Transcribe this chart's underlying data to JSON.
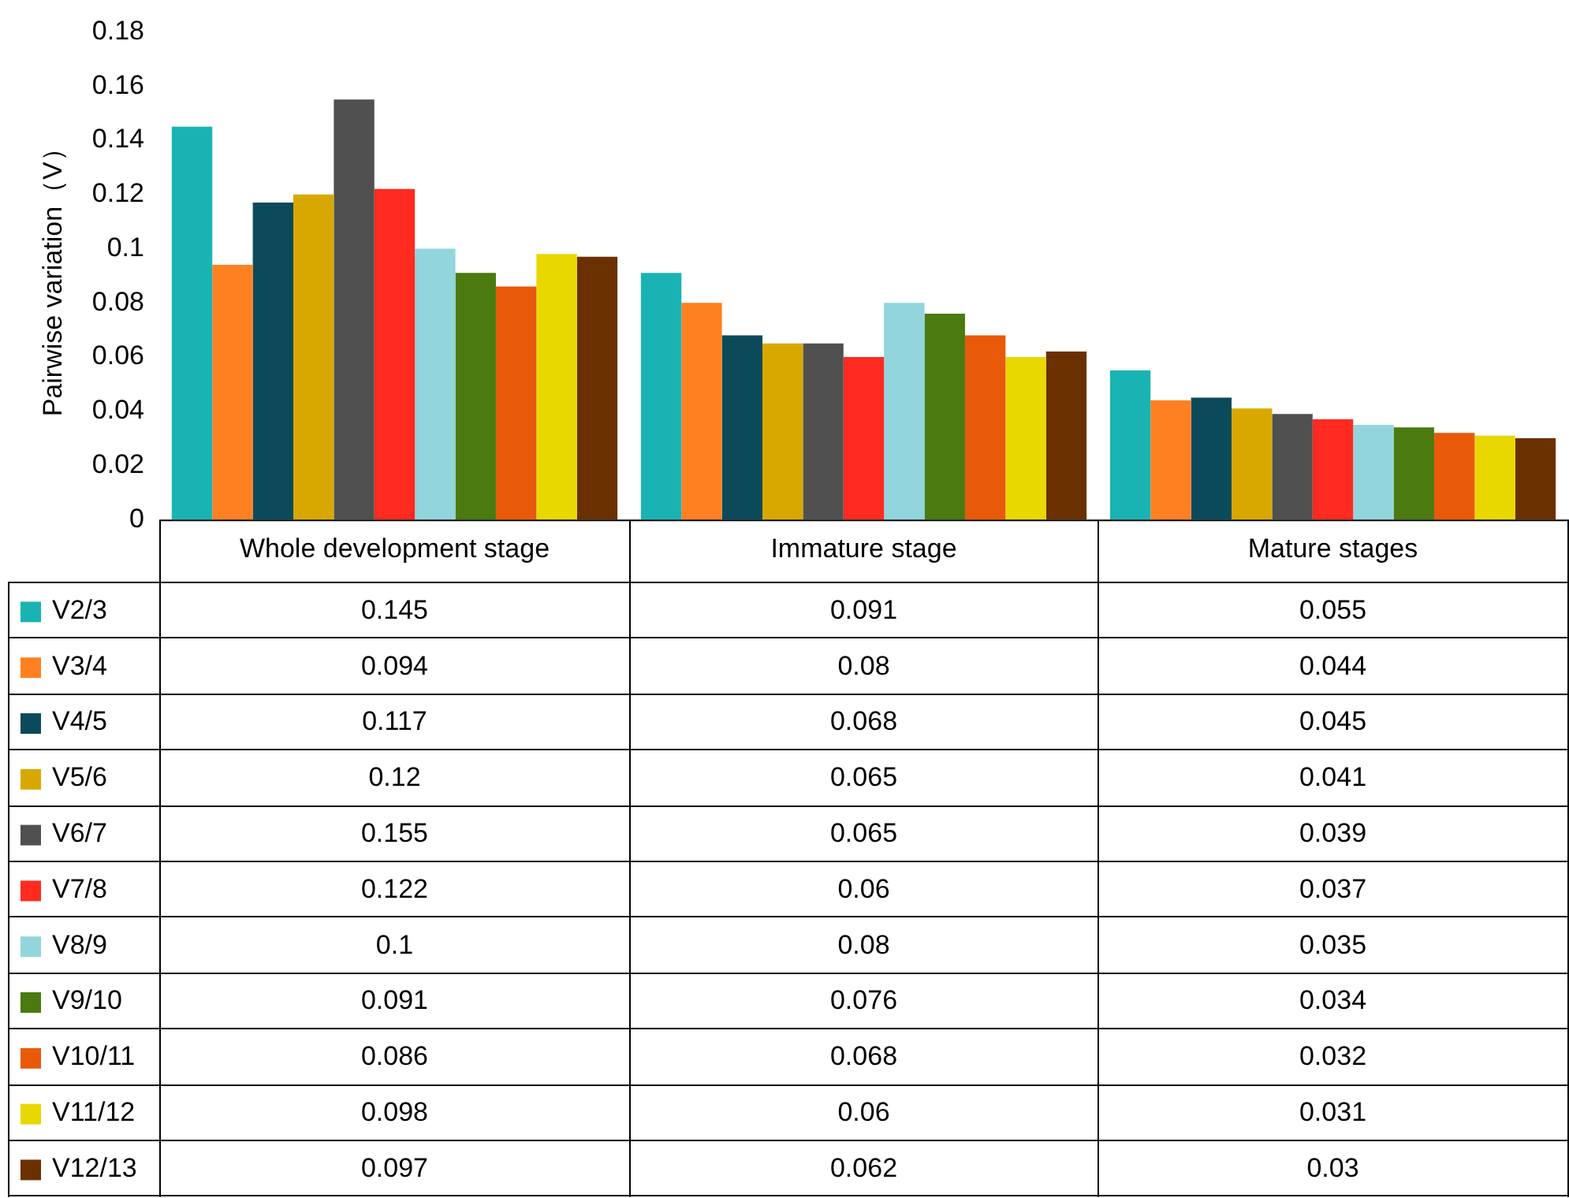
{
  "chart_data": {
    "type": "bar",
    "ylabel": "Pairwise variation（V）",
    "categories": [
      "Whole development stage",
      "Immature stage",
      "Mature stages"
    ],
    "series": [
      {
        "name": "V2/3",
        "color": "#1ab3b3",
        "values": [
          0.145,
          0.091,
          0.055
        ]
      },
      {
        "name": "V3/4",
        "color": "#ff8020",
        "values": [
          0.094,
          0.08,
          0.044
        ]
      },
      {
        "name": "V4/5",
        "color": "#0b4a5a",
        "values": [
          0.117,
          0.068,
          0.045
        ]
      },
      {
        "name": "V5/6",
        "color": "#d9a800",
        "values": [
          0.12,
          0.065,
          0.041
        ]
      },
      {
        "name": "V6/7",
        "color": "#505050",
        "values": [
          0.155,
          0.065,
          0.039
        ]
      },
      {
        "name": "V7/8",
        "color": "#ff2a20",
        "values": [
          0.122,
          0.06,
          0.037
        ]
      },
      {
        "name": "V8/9",
        "color": "#92d5dc",
        "values": [
          0.1,
          0.08,
          0.035
        ]
      },
      {
        "name": "V9/10",
        "color": "#4a7a10",
        "values": [
          0.091,
          0.076,
          0.034
        ]
      },
      {
        "name": "V10/11",
        "color": "#e85a0a",
        "values": [
          0.086,
          0.068,
          0.032
        ]
      },
      {
        "name": "V11/12",
        "color": "#e8d800",
        "values": [
          0.098,
          0.06,
          0.031
        ]
      },
      {
        "name": "V12/13",
        "color": "#6b3000",
        "values": [
          0.097,
          0.062,
          0.03
        ]
      }
    ],
    "ylim": [
      0,
      0.18
    ],
    "yticks": [
      0,
      0.02,
      0.04,
      0.06,
      0.08,
      0.1,
      0.12,
      0.14,
      0.16,
      0.18
    ],
    "grid": false,
    "legend": "bottom",
    "data_labels": true
  }
}
